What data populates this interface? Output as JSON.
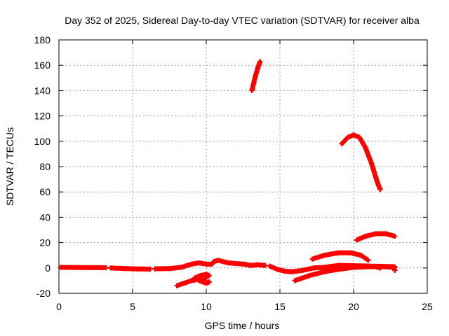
{
  "chart_data": {
    "type": "scatter",
    "title": "Day 352 of 2025, Sidereal Day-to-day VTEC variation (SDTVAR) for receiver alba",
    "xlabel": "GPS time / hours",
    "ylabel": "SDTVAR / TECUs",
    "xlim": [
      0,
      25
    ],
    "ylim": [
      -20,
      180
    ],
    "xticks": [
      0,
      5,
      10,
      15,
      20,
      25
    ],
    "yticks": [
      -20,
      0,
      20,
      40,
      60,
      80,
      100,
      120,
      140,
      160,
      180
    ],
    "grid": true,
    "legend": "none",
    "marker": "plus",
    "color": "#ff0000",
    "series": [
      {
        "segments": [
          [
            [
              0.1,
              0.5
            ],
            [
              1.0,
              0.4
            ],
            [
              2.0,
              0.3
            ],
            [
              3.2,
              0.2
            ]
          ],
          [
            [
              3.5,
              0.0
            ],
            [
              4.5,
              -0.5
            ],
            [
              5.5,
              -0.8
            ],
            [
              6.2,
              -0.9
            ]
          ],
          [
            [
              6.5,
              -0.7
            ],
            [
              7.5,
              -0.5
            ],
            [
              8.3,
              0.5
            ],
            [
              9.0,
              3.0
            ],
            [
              9.5,
              4.0
            ],
            [
              10.0,
              3.0
            ],
            [
              10.4,
              3.0
            ]
          ],
          [
            [
              10.5,
              5.0
            ],
            [
              10.8,
              6.0
            ],
            [
              11.5,
              4.0
            ],
            [
              12.0,
              3.5
            ],
            [
              12.6,
              3.0
            ],
            [
              13.0,
              2.0
            ],
            [
              13.5,
              2.5
            ],
            [
              14.0,
              2.0
            ]
          ],
          [
            [
              14.3,
              1.5
            ],
            [
              14.8,
              -1.0
            ],
            [
              15.3,
              -2.5
            ],
            [
              15.8,
              -3.0
            ],
            [
              16.5,
              -2.0
            ],
            [
              17.3,
              0.0
            ],
            [
              18.0,
              0.5
            ]
          ],
          [
            [
              13.1,
              140
            ],
            [
              13.3,
              150
            ],
            [
              13.5,
              158
            ],
            [
              13.65,
              163
            ]
          ],
          [
            [
              19.2,
              98
            ],
            [
              19.6,
              103
            ],
            [
              20.0,
              105
            ],
            [
              20.4,
              103
            ],
            [
              20.8,
              95
            ],
            [
              21.2,
              83
            ],
            [
              21.6,
              68
            ],
            [
              21.8,
              62
            ]
          ],
          [
            [
              17.2,
              7
            ],
            [
              18.0,
              10
            ],
            [
              19.0,
              12
            ],
            [
              19.8,
              12
            ],
            [
              20.5,
              10
            ],
            [
              21.0,
              6
            ]
          ],
          [
            [
              20.2,
              22
            ],
            [
              20.8,
              25
            ],
            [
              21.5,
              27
            ],
            [
              22.2,
              27
            ],
            [
              22.8,
              25
            ]
          ],
          [
            [
              16.0,
              -10
            ],
            [
              17.0,
              -6
            ],
            [
              18.0,
              -3
            ],
            [
              19.0,
              -1
            ],
            [
              20.0,
              0.5
            ],
            [
              21.0,
              1.0
            ],
            [
              22.0,
              1.0
            ],
            [
              22.8,
              0.5
            ]
          ],
          [
            [
              18.0,
              0.5
            ],
            [
              19.0,
              2.0
            ],
            [
              20.0,
              1.8
            ],
            [
              21.0,
              1.5
            ],
            [
              22.8,
              1.0
            ]
          ],
          [
            [
              21.5,
              1.0
            ],
            [
              21.8,
              0.0
            ]
          ],
          [
            [
              22.7,
              1.0
            ],
            [
              22.8,
              -2.0
            ]
          ],
          [
            [
              8.0,
              -14
            ],
            [
              8.5,
              -12
            ],
            [
              9.0,
              -10
            ],
            [
              9.5,
              -9
            ],
            [
              10.0,
              -8
            ]
          ],
          [
            [
              9.2,
              -8
            ],
            [
              9.6,
              -6
            ],
            [
              10.0,
              -5
            ],
            [
              10.2,
              -6
            ]
          ],
          [
            [
              9.5,
              -10
            ],
            [
              10.0,
              -12
            ],
            [
              10.2,
              -11
            ]
          ]
        ]
      }
    ]
  }
}
